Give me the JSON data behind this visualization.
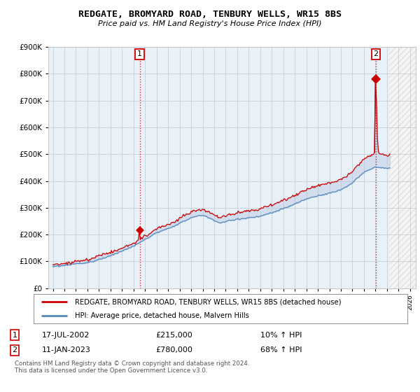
{
  "title": "REDGATE, BROMYARD ROAD, TENBURY WELLS, WR15 8BS",
  "subtitle": "Price paid vs. HM Land Registry's House Price Index (HPI)",
  "legend_line1": "REDGATE, BROMYARD ROAD, TENBURY WELLS, WR15 8BS (detached house)",
  "legend_line2": "HPI: Average price, detached house, Malvern Hills",
  "annotation1_label": "1",
  "annotation1_date": "17-JUL-2002",
  "annotation1_price": "£215,000",
  "annotation1_hpi": "10% ↑ HPI",
  "annotation2_label": "2",
  "annotation2_date": "11-JAN-2023",
  "annotation2_price": "£780,000",
  "annotation2_hpi": "68% ↑ HPI",
  "footer": "Contains HM Land Registry data © Crown copyright and database right 2024.\nThis data is licensed under the Open Government Licence v3.0.",
  "ylim": [
    0,
    900000
  ],
  "yticks": [
    0,
    100000,
    200000,
    300000,
    400000,
    500000,
    600000,
    700000,
    800000,
    900000
  ],
  "xlim_start": 1994.6,
  "xlim_end": 2026.5,
  "data_end": 2024.2,
  "sale1_x": 2002.54,
  "sale1_y": 215000,
  "sale2_x": 2023.04,
  "sale2_y": 780000,
  "property_color": "#cc0000",
  "hpi_color": "#5588bb",
  "fill_color": "#ddeeff",
  "background_color": "#ffffff",
  "plot_bg_color": "#e8f0f8",
  "grid_color": "#c0c8d0"
}
